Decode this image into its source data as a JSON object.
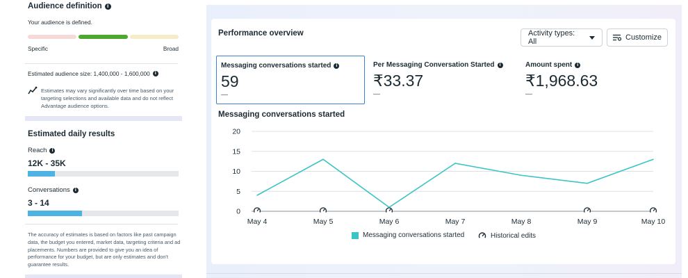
{
  "audience": {
    "title": "Audience definition",
    "status": "Your audience is defined.",
    "meter_low_label": "Specific",
    "meter_high_label": "Broad",
    "size_text": "Estimated audience size: 1,400,000 - 1,600,000",
    "note": "Estimates may vary significantly over time based on your targeting selections and available data and do not reflect Advantage audience options."
  },
  "estimates": {
    "title": "Estimated daily results",
    "reach_label": "Reach",
    "reach_value": "12K - 35K",
    "reach_fill": 0.18,
    "conversations_label": "Conversations",
    "conversations_value": "3 - 14",
    "conversations_fill": 0.36,
    "note": "The accuracy of estimates is based on factors like past campaign data, the budget you entered, market data, targeting criteria and ad placements. Numbers are provided to give you an idea of performance for your budget, but are only estimates and don't guarantee results."
  },
  "performance": {
    "title": "Performance overview",
    "activity_button": "Activity types: All",
    "customize_button": "Customize",
    "metrics": [
      {
        "label": "Messaging conversations started",
        "value": "59",
        "delta": "—"
      },
      {
        "label": "Per Messaging Conversation Started",
        "value": "₹33.37",
        "delta": "—"
      },
      {
        "label": "Amount spent",
        "value": "₹1,968.63",
        "delta": "—"
      }
    ],
    "chart_title": "Messaging conversations started",
    "legend_series": "Messaging conversations started",
    "legend_edits": "Historical edits"
  },
  "chart_data": {
    "type": "line",
    "title": "Messaging conversations started",
    "categories": [
      "May 4",
      "May 5",
      "May 6",
      "May 7",
      "May 8",
      "May 9",
      "May 10"
    ],
    "series": [
      {
        "name": "Messaging conversations started",
        "values": [
          4,
          13,
          1,
          12,
          9,
          7,
          13
        ]
      }
    ],
    "yticks": [
      0,
      5,
      10,
      15,
      20
    ],
    "ylim": [
      0,
      20
    ],
    "grid": true,
    "historical_edits_on": [
      "May 4",
      "May 5",
      "May 6",
      "May 9",
      "May 10"
    ],
    "line_color": "#3bc4c7",
    "legend_position": "bottom"
  }
}
